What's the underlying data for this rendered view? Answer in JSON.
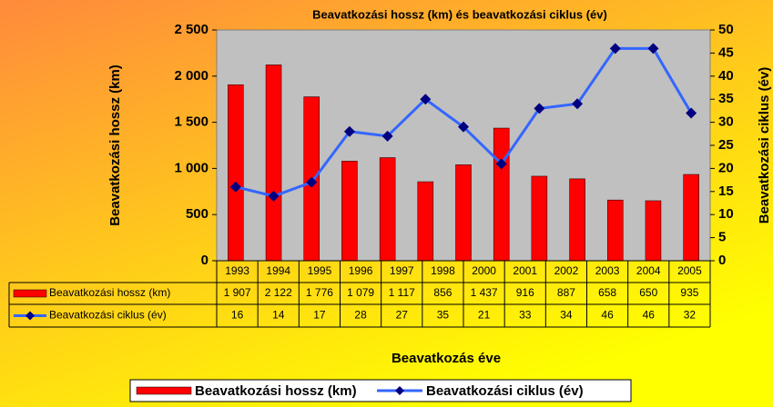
{
  "chart_data": {
    "type": "bar",
    "title": "Beavatkozási hossz (km) és beavatkozási ciklus (év)",
    "x_label": "Beavatkozás éve",
    "y_label": "Beavatkozási hossz (km)",
    "y2_label": "Beavatkozási ciklus (év)",
    "categories": [
      "1993",
      "1994",
      "1995",
      "1996",
      "1997",
      "1998",
      null,
      "2000",
      "2001",
      "2002",
      "2003",
      "2004",
      "2005"
    ],
    "series": [
      {
        "name": "Beavatkozási hossz (km)",
        "type": "bar",
        "color": "#ff0000",
        "values": [
          1907,
          2122,
          1776,
          1079,
          1117,
          856,
          1040,
          1437,
          916,
          887,
          658,
          650,
          935
        ],
        "value_labels": [
          "1 907",
          "2 122",
          "1 776",
          "1 079",
          "1 117",
          "856",
          null,
          "1 437",
          "916",
          "887",
          "658",
          "650",
          "935"
        ]
      },
      {
        "name": "Beavatkozási ciklus (év)",
        "type": "line",
        "color": "#3366ff",
        "marker_color": "#000080",
        "axis": "y2",
        "values": [
          16,
          14,
          17,
          28,
          27,
          35,
          29,
          21,
          33,
          34,
          46,
          46,
          32
        ],
        "value_labels": [
          "16",
          "14",
          "17",
          "28",
          "27",
          "35",
          null,
          "21",
          "33",
          "34",
          "46",
          "46",
          "32"
        ]
      }
    ],
    "ylim": [
      0,
      2500
    ],
    "yticks": [
      0,
      500,
      {
        "value": 1000,
        "label": "1 000"
      },
      {
        "value": 1500,
        "label": "1 500"
      },
      {
        "value": 2000,
        "label": "2 000"
      },
      {
        "value": 2500,
        "label": "2 500"
      }
    ],
    "y2lim": [
      0,
      50
    ],
    "y2ticks": [
      0,
      5,
      10,
      15,
      20,
      25,
      30,
      35,
      40,
      45,
      50
    ],
    "data_table": true,
    "legend": "bottom"
  }
}
